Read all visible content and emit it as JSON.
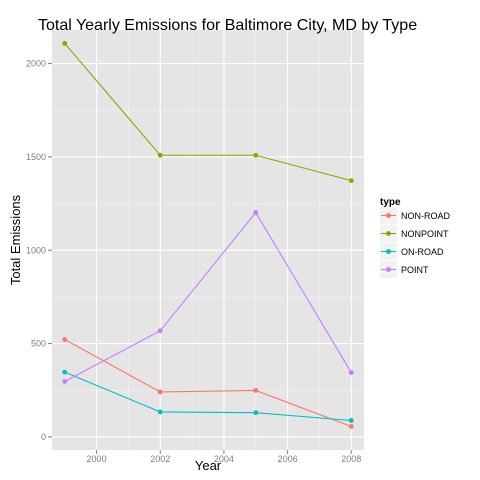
{
  "chart_data": {
    "type": "line",
    "title": "Total Yearly Emissions for Baltimore City, MD by Type",
    "xlabel": "Year",
    "ylabel": "Total Emissions",
    "x": [
      1999,
      2002,
      2005,
      2008
    ],
    "xlim": [
      1998.6,
      2008.4
    ],
    "ylim": [
      -70,
      2180
    ],
    "xticks": [
      2000,
      2002,
      2004,
      2006,
      2008
    ],
    "yticks": [
      0,
      500,
      1000,
      1500,
      2000
    ],
    "xtick_labels": [
      "2000",
      "2002",
      "2004",
      "2006",
      "2008"
    ],
    "ytick_labels": [
      "0",
      "500",
      "1000",
      "1500",
      "2000"
    ],
    "grid": true,
    "legend": {
      "title": "type",
      "position": "right"
    },
    "series": [
      {
        "name": "NON-ROAD",
        "color": "#f8766d",
        "values": [
          522,
          241,
          249,
          56
        ]
      },
      {
        "name": "NONPOINT",
        "color": "#7cae00",
        "values": [
          2108,
          1509,
          1509,
          1373
        ]
      },
      {
        "name": "ON-ROAD",
        "color": "#00bfc4",
        "values": [
          347,
          134,
          130,
          88
        ]
      },
      {
        "name": "POINT",
        "color": "#c77cff",
        "values": [
          297,
          569,
          1202,
          345
        ]
      }
    ]
  }
}
